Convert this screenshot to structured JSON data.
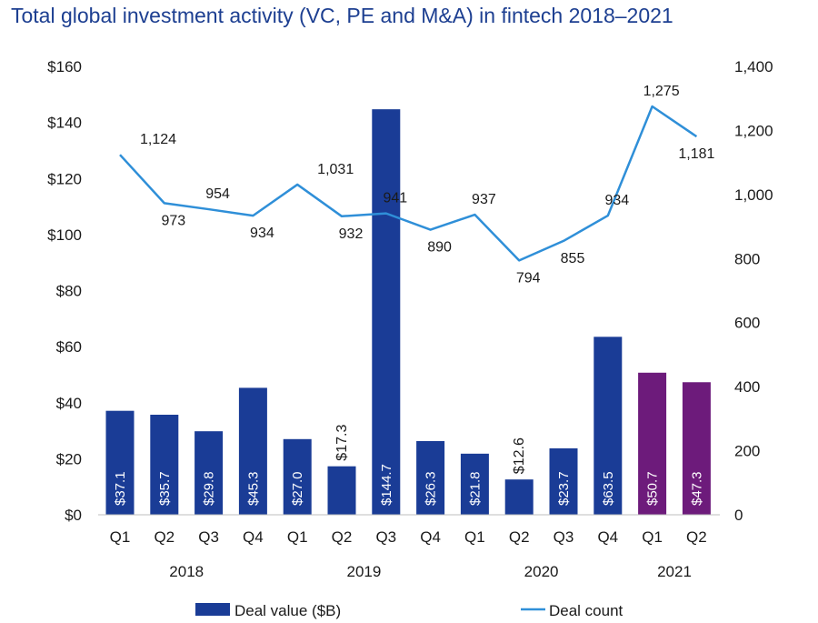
{
  "title": "Total global investment activity (VC, PE and M&A) in fintech 2018–2021",
  "chart_data": {
    "type": "bar+line",
    "title": "Total global investment activity (VC, PE and M&A) in fintech 2018–2021",
    "categories": [
      "Q1",
      "Q2",
      "Q3",
      "Q4",
      "Q1",
      "Q2",
      "Q3",
      "Q4",
      "Q1",
      "Q2",
      "Q3",
      "Q4",
      "Q1",
      "Q2"
    ],
    "years": [
      {
        "label": "2018",
        "span": [
          0,
          3
        ]
      },
      {
        "label": "2019",
        "span": [
          4,
          7
        ]
      },
      {
        "label": "2020",
        "span": [
          8,
          11
        ]
      },
      {
        "label": "2021",
        "span": [
          12,
          13
        ]
      }
    ],
    "series": [
      {
        "name": "Deal value ($B)",
        "type": "bar",
        "axis": "left",
        "values": [
          37.1,
          35.7,
          29.8,
          45.3,
          27.0,
          17.3,
          144.7,
          26.3,
          21.8,
          12.6,
          23.7,
          63.5,
          50.7,
          47.3
        ],
        "labels": [
          "$37.1",
          "$35.7",
          "$29.8",
          "$45.3",
          "$27.0",
          "$17.3",
          "$144.7",
          "$26.3",
          "$21.8",
          "$12.6",
          "$23.7",
          "$63.5",
          "$50.7",
          "$47.3"
        ],
        "label_outside": [
          false,
          false,
          false,
          false,
          false,
          true,
          false,
          false,
          false,
          true,
          false,
          false,
          false,
          false
        ],
        "colors": [
          "#1a3c96",
          "#1a3c96",
          "#1a3c96",
          "#1a3c96",
          "#1a3c96",
          "#1a3c96",
          "#1a3c96",
          "#1a3c96",
          "#1a3c96",
          "#1a3c96",
          "#1a3c96",
          "#1a3c96",
          "#6d1b7b",
          "#6d1b7b"
        ]
      },
      {
        "name": "Deal count",
        "type": "line",
        "axis": "right",
        "color": "#2f8fd8",
        "values": [
          1124,
          973,
          954,
          934,
          1031,
          932,
          941,
          890,
          937,
          794,
          855,
          934,
          1275,
          1181
        ],
        "labels": [
          "1,124",
          "973",
          "954",
          "934",
          "1,031",
          "932",
          "941",
          "890",
          "937",
          "794",
          "855",
          "934",
          "1,275",
          "1,181"
        ],
        "label_dy": [
          -1,
          1,
          -1,
          1,
          -1,
          1,
          -1,
          1,
          -1,
          1,
          1,
          -1,
          -1,
          1
        ]
      }
    ],
    "y_left": {
      "min": 0,
      "max": 160,
      "ticks": [
        "$0",
        "$20",
        "$40",
        "$60",
        "$80",
        "$100",
        "$120",
        "$140",
        "$160"
      ]
    },
    "y_right": {
      "min": 0,
      "max": 1400,
      "ticks": [
        "0",
        "200",
        "400",
        "600",
        "800",
        "1,000",
        "1,200",
        "1,400"
      ]
    },
    "legend": {
      "position": "bottom",
      "items": [
        "Deal value ($B)",
        "Deal count"
      ]
    },
    "grid": false
  }
}
